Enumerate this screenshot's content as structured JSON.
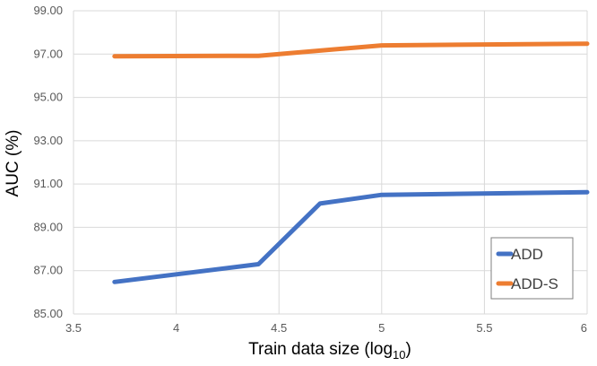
{
  "chart_data": {
    "type": "line",
    "xlabel": "Train data size (log",
    "xlabel_sub": "10",
    "xlabel_suffix": ")",
    "ylabel": "AUC (%)",
    "xlim": [
      3.5,
      6
    ],
    "ylim": [
      85,
      99
    ],
    "x_ticks": [
      "3.5",
      "4",
      "4.5",
      "5",
      "5.5",
      "6"
    ],
    "y_ticks": [
      "85.00",
      "87.00",
      "89.00",
      "91.00",
      "93.00",
      "95.00",
      "97.00",
      "99.00"
    ],
    "grid": true,
    "legend_position": "bottom-right",
    "series": [
      {
        "name": "ADD",
        "color": "#4472C4",
        "points": [
          [
            3.7,
            86.48
          ],
          [
            4.4,
            87.3
          ],
          [
            4.7,
            90.1
          ],
          [
            5.0,
            90.5
          ],
          [
            6.0,
            90.62
          ]
        ]
      },
      {
        "name": "ADD-S",
        "color": "#ED7D31",
        "points": [
          [
            3.7,
            96.9
          ],
          [
            4.4,
            96.92
          ],
          [
            5.0,
            97.4
          ],
          [
            6.0,
            97.48
          ]
        ]
      }
    ]
  }
}
